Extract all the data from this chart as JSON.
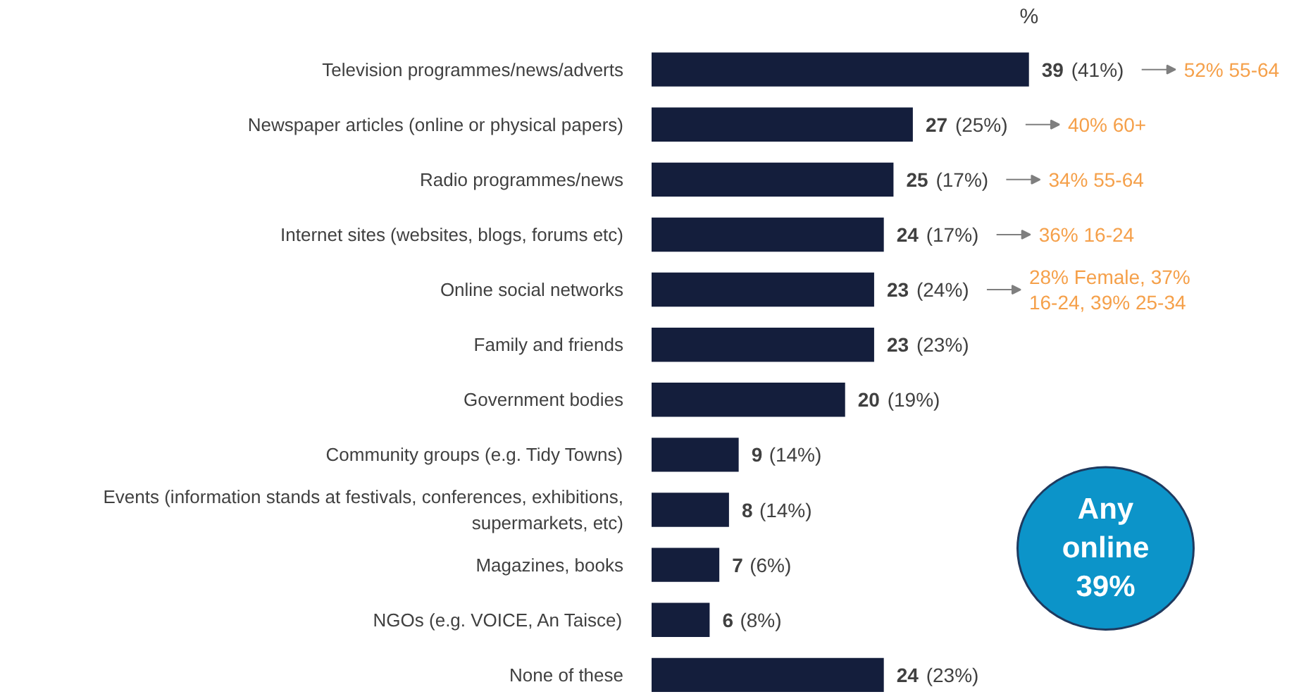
{
  "chart_data": {
    "type": "bar",
    "orientation": "horizontal",
    "xlabel": "%",
    "color": "#141e3c",
    "categories": [
      "Television programmes/news/adverts",
      "Newspaper articles (online or physical papers)",
      "Radio programmes/news",
      "Internet sites (websites, blogs, forums etc)",
      "Online social networks",
      "Family and friends",
      "Government bodies",
      "Community groups (e.g. Tidy Towns)",
      "Events (information stands at festivals, conferences, exhibitions, supermarkets, etc)",
      "Magazines, books",
      "NGOs (e.g. VOICE, An Taisce)",
      "None of these"
    ],
    "values": [
      39,
      27,
      25,
      24,
      23,
      23,
      20,
      9,
      8,
      7,
      6,
      24
    ],
    "value_labels": [
      "39 (41%)",
      "27 (25%)",
      "25 (17%)",
      "24 (17%)",
      "23 (24%)",
      "23 (23%)",
      "20 (19%)",
      "9 (14%)",
      "8 (14%)",
      "7 (6%)",
      "6 (8%)",
      "24 (23%)"
    ],
    "annotations": [
      "52% 55-64",
      "40% 60+",
      "34% 55-64",
      "36% 16-24",
      "28% Female, 37% 16-24, 39% 25-34",
      "Any online 39%"
    ]
  }
}
